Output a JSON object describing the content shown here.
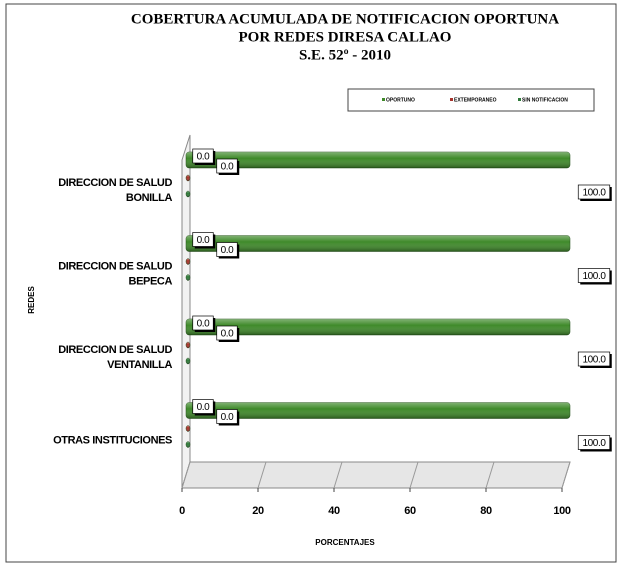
{
  "chart_data": {
    "type": "bar3d-horizontal",
    "title_lines": [
      "COBERTURA ACUMULADA DE NOTIFICACION OPORTUNA",
      "POR REDES DIRESA  CALLAO",
      "S.E. 52º  - 2010"
    ],
    "x_label": "PORCENTAJES",
    "y_label": "REDES",
    "categories": [
      "DIRECCION DE SALUD BONILLA",
      "DIRECCION DE SALUD BEPECA",
      "DIRECCION DE SALUD VENTANILLA",
      "OTRAS INSTITUCIONES"
    ],
    "series": [
      {
        "name": "OPORTUNO",
        "color": "#3f8a2a",
        "values": [
          100,
          100,
          100,
          100
        ],
        "value_labels": [
          "100.0",
          "100.0",
          "100.0",
          "100.0"
        ]
      },
      {
        "name": "EXTEMPORANEO",
        "color": "#a8342c",
        "values": [
          0,
          0,
          0,
          0
        ],
        "value_labels": [
          "0.0",
          "0.0",
          "0.0",
          "0.0"
        ]
      },
      {
        "name": "SIN NOTIFICACION",
        "color": "#2f7a3a",
        "values": [
          0,
          0,
          0,
          0
        ],
        "value_labels": [
          "0.0",
          "0.0",
          "0.0",
          "0.0"
        ]
      }
    ],
    "xlim": [
      0,
      100
    ],
    "xticks": [
      0,
      20,
      40,
      60,
      80,
      100
    ],
    "grid": true
  }
}
